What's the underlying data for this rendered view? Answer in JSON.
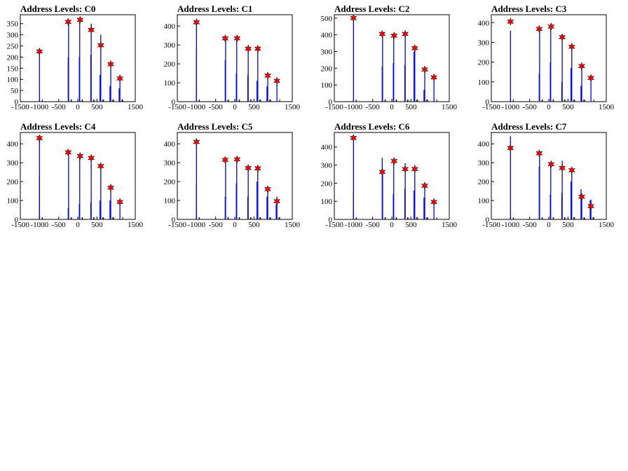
{
  "colors": {
    "histogram": "#0000ff",
    "peak_marker": "#ff0000",
    "marker_edge": "#000000",
    "frame": "#000000"
  },
  "icons": {
    "peak_marker": "star"
  },
  "chart_data": [
    {
      "type": "bar",
      "title": "Address Levels: C0",
      "xlim": [
        -1500,
        1500
      ],
      "ylim": [
        0,
        390
      ],
      "xticks": [
        -1500,
        -1000,
        -500,
        0,
        500,
        1500
      ],
      "yticks": [
        0,
        50,
        100,
        150,
        200,
        250,
        300,
        350
      ],
      "bins": [
        [
          -1000,
          215
        ],
        [
          -250,
          200
        ],
        [
          -240,
          360
        ],
        [
          40,
          200
        ],
        [
          50,
          370
        ],
        [
          340,
          210
        ],
        [
          350,
          350
        ],
        [
          580,
          120
        ],
        [
          600,
          300
        ],
        [
          840,
          70
        ],
        [
          860,
          165
        ],
        [
          1080,
          60
        ],
        [
          1100,
          120
        ]
      ],
      "peaks": [
        [
          -1000,
          225
        ],
        [
          -250,
          358
        ],
        [
          60,
          367
        ],
        [
          350,
          322
        ],
        [
          600,
          253
        ],
        [
          860,
          168
        ],
        [
          1100,
          104
        ]
      ]
    },
    {
      "type": "bar",
      "title": "Address Levels: C1",
      "xlim": [
        -1500,
        1500
      ],
      "ylim": [
        0,
        460
      ],
      "xticks": [
        -1500,
        -1000,
        -500,
        0,
        500,
        1500
      ],
      "yticks": [
        0,
        100,
        200,
        300,
        400
      ],
      "bins": [
        [
          -1000,
          280
        ],
        [
          -1000,
          420
        ],
        [
          -250,
          220
        ],
        [
          -240,
          330
        ],
        [
          40,
          150
        ],
        [
          50,
          330
        ],
        [
          340,
          140
        ],
        [
          350,
          300
        ],
        [
          580,
          110
        ],
        [
          600,
          290
        ],
        [
          840,
          80
        ],
        [
          860,
          150
        ],
        [
          1100,
          120
        ]
      ],
      "peaks": [
        [
          -1000,
          420
        ],
        [
          -250,
          335
        ],
        [
          60,
          335
        ],
        [
          350,
          280
        ],
        [
          600,
          280
        ],
        [
          860,
          138
        ],
        [
          1100,
          110
        ]
      ]
    },
    {
      "type": "bar",
      "title": "Address Levels: C2",
      "xlim": [
        -1500,
        1500
      ],
      "ylim": [
        0,
        520
      ],
      "xticks": [
        -1500,
        -1000,
        -500,
        0,
        500,
        1500
      ],
      "yticks": [
        0,
        100,
        200,
        300,
        400,
        500
      ],
      "bins": [
        [
          -1000,
          510
        ],
        [
          -250,
          210
        ],
        [
          -240,
          400
        ],
        [
          40,
          230
        ],
        [
          50,
          390
        ],
        [
          340,
          220
        ],
        [
          350,
          400
        ],
        [
          580,
          300
        ],
        [
          600,
          330
        ],
        [
          840,
          70
        ],
        [
          860,
          190
        ],
        [
          1100,
          140
        ]
      ],
      "peaks": [
        [
          -1000,
          500
        ],
        [
          -250,
          405
        ],
        [
          60,
          395
        ],
        [
          350,
          405
        ],
        [
          600,
          320
        ],
        [
          860,
          192
        ],
        [
          1100,
          145
        ]
      ]
    },
    {
      "type": "bar",
      "title": "Address Levels: C3",
      "xlim": [
        -1500,
        1500
      ],
      "ylim": [
        0,
        440
      ],
      "xticks": [
        -1500,
        -1000,
        -500,
        0,
        500,
        1500
      ],
      "yticks": [
        0,
        100,
        200,
        300,
        400
      ],
      "bins": [
        [
          -1000,
          360
        ],
        [
          -250,
          140
        ],
        [
          -240,
          365
        ],
        [
          40,
          200
        ],
        [
          50,
          380
        ],
        [
          340,
          100
        ],
        [
          350,
          320
        ],
        [
          580,
          170
        ],
        [
          600,
          280
        ],
        [
          840,
          80
        ],
        [
          860,
          180
        ],
        [
          1100,
          110
        ]
      ],
      "peaks": [
        [
          -1000,
          405
        ],
        [
          -250,
          368
        ],
        [
          60,
          380
        ],
        [
          350,
          326
        ],
        [
          600,
          278
        ],
        [
          860,
          180
        ],
        [
          1100,
          120
        ]
      ]
    },
    {
      "type": "bar",
      "title": "Address Levels: C4",
      "xlim": [
        -1500,
        1500
      ],
      "ylim": [
        0,
        460
      ],
      "xticks": [
        -1500,
        -1000,
        -500,
        0,
        500,
        1500
      ],
      "yticks": [
        0,
        100,
        200,
        300,
        400
      ],
      "bins": [
        [
          -1000,
          230
        ],
        [
          -1000,
          430
        ],
        [
          -250,
          60
        ],
        [
          -240,
          355
        ],
        [
          40,
          80
        ],
        [
          50,
          340
        ],
        [
          340,
          90
        ],
        [
          350,
          320
        ],
        [
          580,
          100
        ],
        [
          600,
          290
        ],
        [
          840,
          100
        ],
        [
          860,
          170
        ],
        [
          1100,
          90
        ]
      ],
      "peaks": [
        [
          -1000,
          430
        ],
        [
          -250,
          355
        ],
        [
          60,
          335
        ],
        [
          350,
          325
        ],
        [
          600,
          282
        ],
        [
          860,
          168
        ],
        [
          1100,
          92
        ]
      ]
    },
    {
      "type": "bar",
      "title": "Address Levels: C5",
      "xlim": [
        -1500,
        1500
      ],
      "ylim": [
        0,
        460
      ],
      "xticks": [
        -1500,
        -1000,
        -500,
        0,
        500,
        1500
      ],
      "yticks": [
        0,
        100,
        200,
        300,
        400
      ],
      "bins": [
        [
          -1000,
          190
        ],
        [
          -1000,
          410
        ],
        [
          -250,
          120
        ],
        [
          -240,
          310
        ],
        [
          40,
          190
        ],
        [
          50,
          320
        ],
        [
          340,
          120
        ],
        [
          350,
          280
        ],
        [
          580,
          200
        ],
        [
          600,
          270
        ],
        [
          840,
          120
        ],
        [
          860,
          150
        ],
        [
          1080,
          80
        ],
        [
          1100,
          120
        ]
      ],
      "peaks": [
        [
          -1000,
          410
        ],
        [
          -250,
          315
        ],
        [
          60,
          318
        ],
        [
          350,
          272
        ],
        [
          600,
          270
        ],
        [
          860,
          160
        ],
        [
          1100,
          96
        ]
      ]
    },
    {
      "type": "bar",
      "title": "Address Levels: C6",
      "xlim": [
        -1500,
        1500
      ],
      "ylim": [
        0,
        480
      ],
      "xticks": [
        -1500,
        -1000,
        -500,
        0,
        500,
        1500
      ],
      "yticks": [
        0,
        100,
        200,
        300,
        400
      ],
      "bins": [
        [
          -1000,
          150
        ],
        [
          -1000,
          455
        ],
        [
          -250,
          340
        ],
        [
          -240,
          280
        ],
        [
          40,
          140
        ],
        [
          50,
          330
        ],
        [
          340,
          170
        ],
        [
          350,
          310
        ],
        [
          580,
          160
        ],
        [
          600,
          300
        ],
        [
          840,
          120
        ],
        [
          860,
          190
        ],
        [
          1100,
          100
        ]
      ],
      "peaks": [
        [
          -1000,
          450
        ],
        [
          -250,
          262
        ],
        [
          60,
          322
        ],
        [
          350,
          278
        ],
        [
          600,
          278
        ],
        [
          860,
          186
        ],
        [
          1100,
          96
        ]
      ]
    },
    {
      "type": "bar",
      "title": "Address Levels: C7",
      "xlim": [
        -1500,
        1500
      ],
      "ylim": [
        0,
        460
      ],
      "xticks": [
        -1500,
        -1000,
        -500,
        0,
        500,
        1500
      ],
      "yticks": [
        0,
        100,
        200,
        300,
        400
      ],
      "bins": [
        [
          -1000,
          440
        ],
        [
          -250,
          280
        ],
        [
          -240,
          355
        ],
        [
          40,
          130
        ],
        [
          50,
          295
        ],
        [
          340,
          140
        ],
        [
          350,
          310
        ],
        [
          580,
          200
        ],
        [
          600,
          270
        ],
        [
          840,
          160
        ],
        [
          860,
          120
        ],
        [
          1080,
          100
        ],
        [
          1100,
          105
        ]
      ],
      "peaks": [
        [
          -1000,
          378
        ],
        [
          -250,
          350
        ],
        [
          60,
          292
        ],
        [
          350,
          272
        ],
        [
          600,
          260
        ],
        [
          860,
          120
        ],
        [
          1100,
          70
        ]
      ]
    }
  ]
}
